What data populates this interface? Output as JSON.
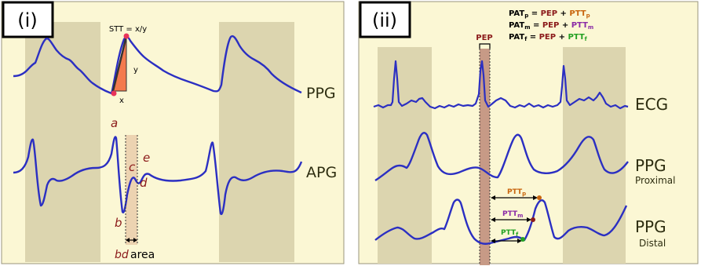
{
  "panel_i": {
    "tag": "(i)",
    "stt_formula": "STT = x/y",
    "y_label": "y",
    "x_label": "x",
    "ppg_label": "PPG",
    "apg_label": "APG",
    "point_a": "a",
    "point_b": "b",
    "point_c": "c",
    "point_d": "d",
    "point_e": "e",
    "bd_label": "bd",
    "area_label": "area"
  },
  "panel_ii": {
    "tag": "(ii)",
    "formula_p": {
      "lhs": "PAT",
      "lhs_sub": "p",
      "eq": " = ",
      "pep": "PEP",
      "plus": " + ",
      "ptt": "PTT",
      "ptt_sub": "p"
    },
    "formula_m": {
      "lhs": "PAT",
      "lhs_sub": "m",
      "eq": " = ",
      "pep": "PEP",
      "plus": " + ",
      "ptt": "PTT",
      "ptt_sub": "m"
    },
    "formula_f": {
      "lhs": "PAT",
      "lhs_sub": "f",
      "eq": " = ",
      "pep": "PEP",
      "plus": " + ",
      "ptt": "PTT",
      "ptt_sub": "f"
    },
    "pep_label": "PEP",
    "ecg_label": "ECG",
    "ppg_prox_label": "PPG",
    "proximal_label": "Proximal",
    "ppg_dist_label": "PPG",
    "distal_label": "Distal",
    "pttp_label": "PTT",
    "pttp_sub": "p",
    "pttm_label": "PTT",
    "pttm_sub": "m",
    "pttf_label": "PTT",
    "pttf_sub": "f"
  },
  "colors": {
    "background": "#fbf7d4",
    "shade": "#dcd5af",
    "signal": "#2b2fc2",
    "orange": "#f47a4d",
    "marker": "#e8345a",
    "dark_red": "#8b1a1a",
    "orange_text": "#c8650e",
    "purple": "#8a2aa6",
    "green": "#23a023",
    "pep_band": "#c79a86"
  }
}
